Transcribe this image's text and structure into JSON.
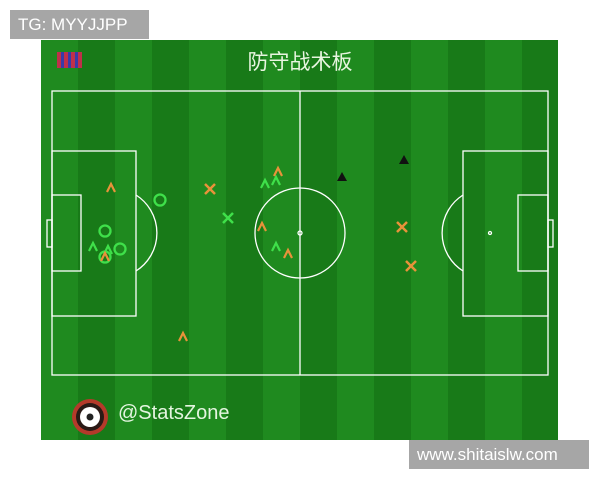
{
  "watermark_top": "TG: MYYJJPP",
  "watermark_bottom": "www.shitaislw.com",
  "board": {
    "title": "防守战术板",
    "credit": "@StatsZone",
    "team_badge_icon": "striped-team-flag-icon",
    "credit_icon": "soccer-ball-icon"
  },
  "colors": {
    "pitch": "#1f8a1f",
    "pitch_stripe": "#187a18",
    "lines": "#ffffff",
    "orange_marker": "#e8923a",
    "green_marker": "#3fe04a",
    "black_marker": "#111111"
  },
  "marker_types": {
    "orange_chevron": "orange-chevron",
    "orange_cross": "orange-cross",
    "green_chevron": "green-chevron",
    "green_circle": "green-circle",
    "green_cross": "green-cross",
    "black_triangle": "black-triangle"
  }
}
